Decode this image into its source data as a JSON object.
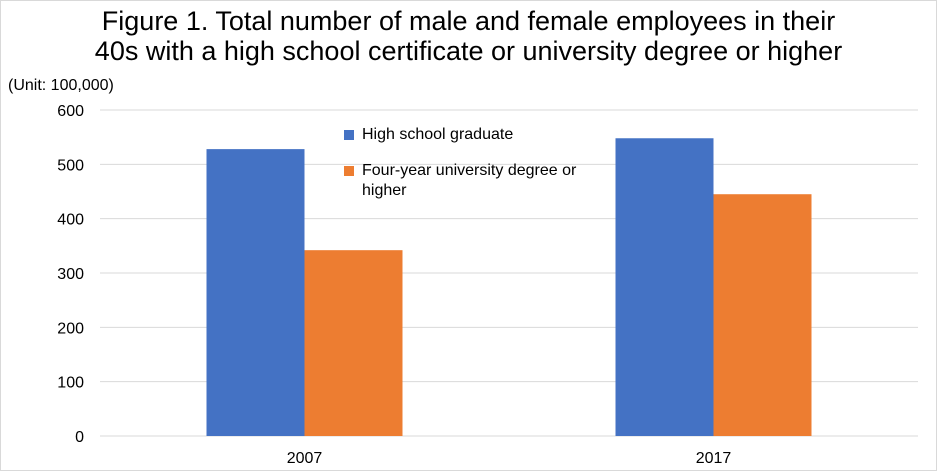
{
  "title_line1": "Figure 1.  Total number of male and female employees in their",
  "title_line2": "40s with a high school certificate or university degree or higher",
  "unit_label": "(Unit: 100,000)",
  "chart_data": {
    "type": "bar",
    "categories": [
      "2007",
      "2017"
    ],
    "series": [
      {
        "name": "High school graduate",
        "values": [
          528,
          548
        ],
        "color": "#4472c4"
      },
      {
        "name": "Four-year university degree or higher",
        "values": [
          342,
          445
        ],
        "color": "#ed7d31"
      }
    ],
    "ylim": [
      0,
      600
    ],
    "yticks": [
      "0",
      "100",
      "200",
      "300",
      "400",
      "500",
      "600"
    ],
    "grid": true,
    "legend_position": "inside-top-center"
  }
}
